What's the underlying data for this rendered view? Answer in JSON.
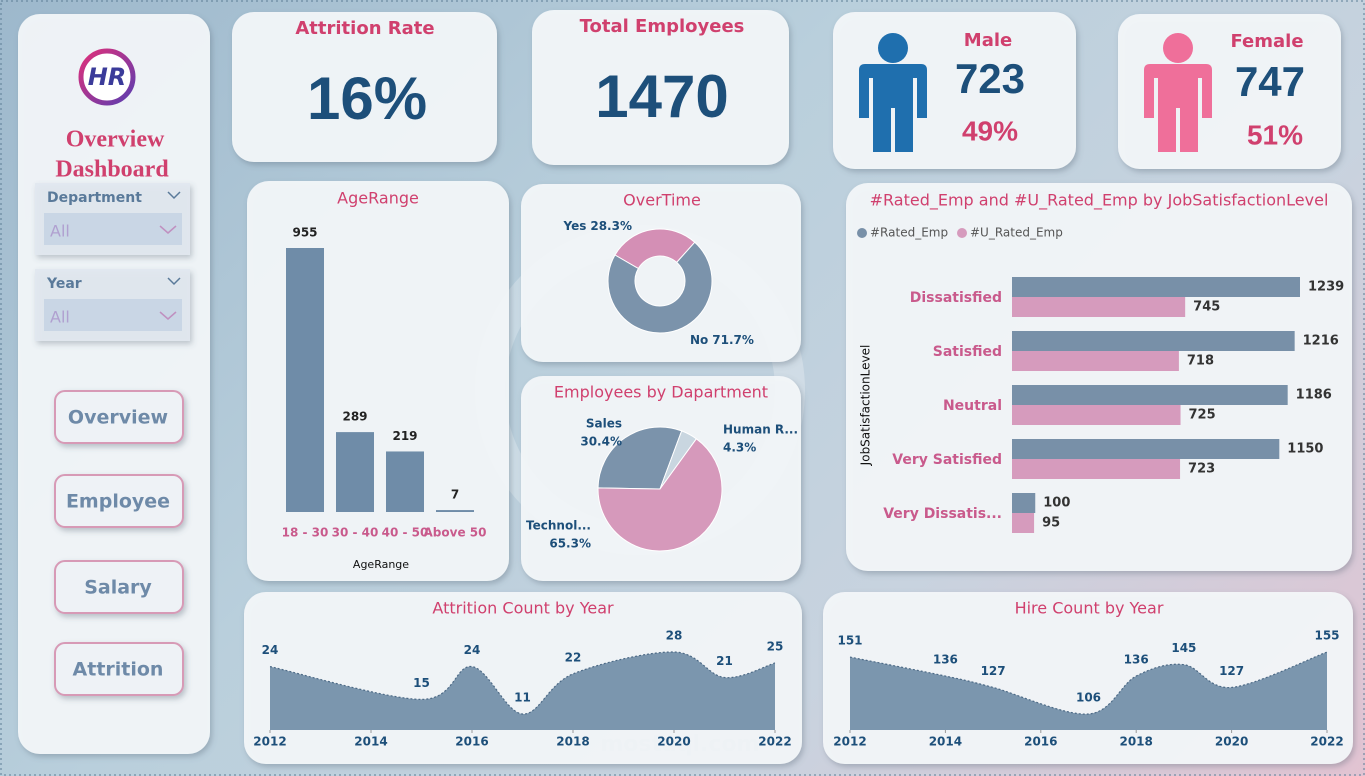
{
  "sidebar": {
    "logo": "HR",
    "title": [
      "Overview",
      "Dashboard"
    ],
    "filters": [
      {
        "label": "Department",
        "value": "All"
      },
      {
        "label": "Year",
        "value": "All"
      }
    ],
    "buttons": [
      "Overview",
      "Employee",
      "Salary",
      "Attrition"
    ]
  },
  "kpis": [
    {
      "title": "Attrition Rate",
      "value": "16%"
    },
    {
      "title": "Total Employees",
      "value": 1470
    },
    {
      "title": "Male",
      "value": 723,
      "share": "49%"
    },
    {
      "title": "Female",
      "value": 747,
      "share": "51%"
    }
  ],
  "chart_data": [
    {
      "type": "bar",
      "title": "AgeRange",
      "x_label": "AgeRange",
      "categories": [
        "18 - 30",
        "30 - 40",
        "40 - 50",
        "Above 50"
      ],
      "values": [
        955,
        289,
        219,
        7
      ],
      "color": "#6f8ca8"
    },
    {
      "type": "donut",
      "title": "OverTime",
      "categories": [
        "Yes",
        "No"
      ],
      "values": [
        28.3,
        71.7
      ],
      "value_labels": [
        "28.3%",
        "71.7%"
      ],
      "colors": [
        "#d48fb5",
        "#7b93ab"
      ]
    },
    {
      "type": "pie",
      "title": "Employees by Dapartment",
      "categories": [
        "Sales",
        "Human R...",
        "Technol..."
      ],
      "values": [
        30.4,
        4.3,
        65.3
      ],
      "value_labels": [
        "30.4%",
        "4.3%",
        "65.3%"
      ],
      "colors": [
        "#7b93ab",
        "#c9d6e0",
        "#d699bb"
      ]
    },
    {
      "type": "hbar",
      "title": "#Rated_Emp and #U_Rated_Emp by JobSatisfactionLevel",
      "y_label": "JobSatisfactionLevel",
      "categories": [
        "Dissatisfied",
        "Satisfied",
        "Neutral",
        "Very Satisfied",
        "Very Dissatis..."
      ],
      "series": [
        {
          "name": "#Rated_Emp",
          "color": "#7890a8",
          "values": [
            1239,
            1216,
            1186,
            1150,
            100
          ]
        },
        {
          "name": "#U_Rated_Emp",
          "color": "#d69bbd",
          "values": [
            745,
            718,
            725,
            723,
            95
          ]
        }
      ]
    },
    {
      "type": "area",
      "title": "Attrition Count by Year",
      "x": [
        2012,
        2015,
        2016,
        2017,
        2018,
        2020,
        2021,
        2022
      ],
      "values": [
        24,
        15,
        24,
        11,
        22,
        28,
        21,
        25
      ],
      "xlim": [
        2012,
        2022
      ],
      "xticks": [
        2012,
        2014,
        2016,
        2018,
        2020,
        2022
      ],
      "color": "#7b96ae"
    },
    {
      "type": "area",
      "title": "Hire Count by Year",
      "x": [
        2012,
        2014,
        2015,
        2017,
        2018,
        2019,
        2020,
        2022
      ],
      "values": [
        151,
        136,
        127,
        106,
        136,
        145,
        127,
        155
      ],
      "xlim": [
        2012,
        2022
      ],
      "xticks": [
        2012,
        2014,
        2016,
        2018,
        2020,
        2022
      ],
      "color": "#7b96ae"
    }
  ],
  "watermark": [
    "مستقل",
    "mostaql.com"
  ]
}
